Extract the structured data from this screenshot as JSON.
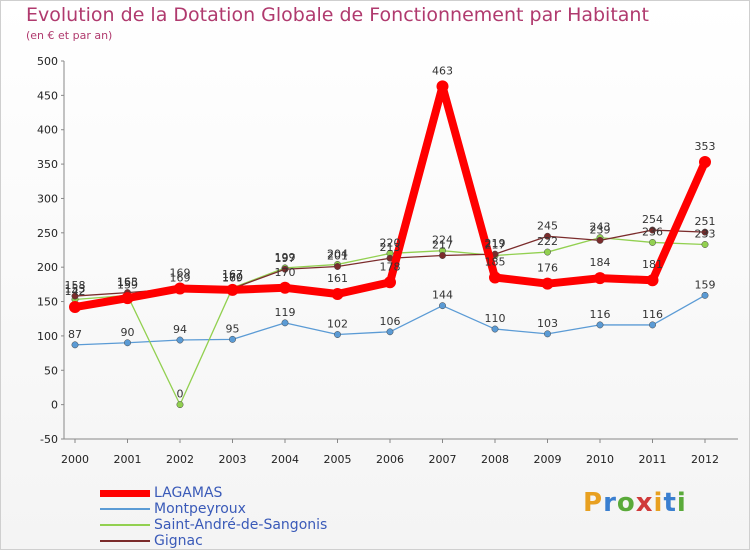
{
  "title": "Evolution de la Dotation Globale de Fonctionnement par Habitant",
  "subtitle": "(en € et par an)",
  "logo": "Proxiti",
  "chart_data": {
    "type": "line",
    "title": "Evolution de la Dotation Globale de Fonctionnement par Habitant",
    "subtitle": "(en € et par an)",
    "x": [
      "2000",
      "2001",
      "2002",
      "2003",
      "2004",
      "2005",
      "2006",
      "2007",
      "2008",
      "2009",
      "2010",
      "2011",
      "2012"
    ],
    "ylim": [
      -50,
      500
    ],
    "yticks": [
      -50,
      0,
      50,
      100,
      150,
      200,
      250,
      300,
      350,
      400,
      450,
      500
    ],
    "grid": false,
    "legend": "bottom-left",
    "series": [
      {
        "name": "LAGAMAS",
        "color": "#ff0000",
        "values": [
          142,
          155,
          169,
          167,
          170,
          161,
          178,
          463,
          185,
          176,
          184,
          181,
          353
        ]
      },
      {
        "name": "Montpeyroux",
        "color": "#5b9bd5",
        "values": [
          87,
          90,
          94,
          95,
          119,
          102,
          106,
          144,
          110,
          103,
          116,
          116,
          159
        ]
      },
      {
        "name": "Saint-André-de-Sangonis",
        "color": "#92d050",
        "values": [
          153,
          159,
          0,
          170,
          199,
          204,
          220,
          224,
          217,
          222,
          243,
          236,
          233
        ]
      },
      {
        "name": "Gignac",
        "color": "#7b2c2c",
        "values": [
          158,
          163,
          169,
          169,
          197,
          201,
          213,
          217,
          219,
          245,
          239,
          254,
          251
        ]
      }
    ]
  }
}
